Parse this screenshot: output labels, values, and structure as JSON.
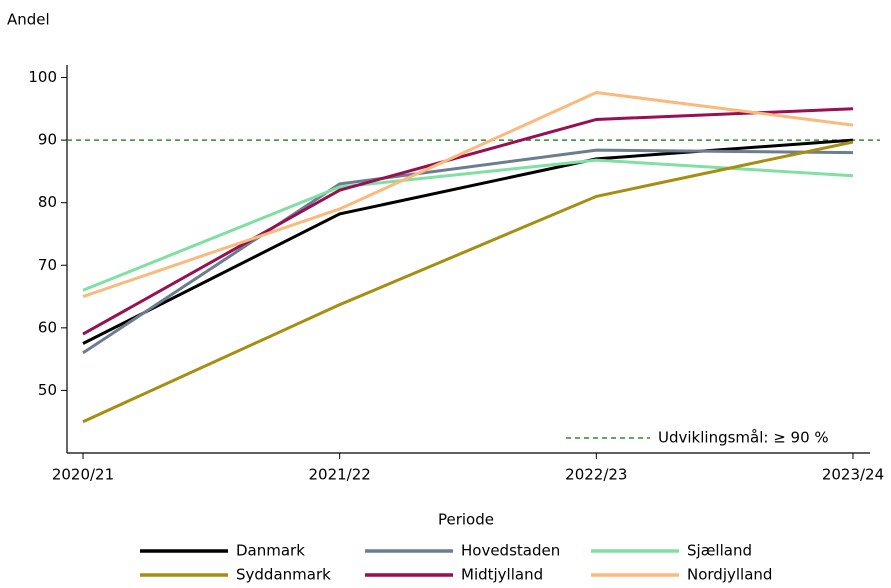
{
  "chart_data": {
    "type": "line",
    "y_label": "Andel",
    "x_label": "Periode",
    "categories": [
      "2020/21",
      "2021/22",
      "2022/23",
      "2023/24"
    ],
    "series": [
      {
        "name": "Danmark",
        "color": "#000000",
        "values": [
          57.5,
          78.2,
          87,
          90
        ]
      },
      {
        "name": "Hovedstaden",
        "color": "#6b7d8f",
        "values": [
          56,
          83,
          88.4,
          88
        ]
      },
      {
        "name": "Sjælland",
        "color": "#7fe0a3",
        "values": [
          66,
          82.5,
          86.8,
          84.3
        ]
      },
      {
        "name": "Syddanmark",
        "color": "#a68e10",
        "values": [
          45,
          63.7,
          81,
          89.7
        ]
      },
      {
        "name": "Midtjylland",
        "color": "#990f52",
        "values": [
          59,
          82,
          93.3,
          95
        ]
      },
      {
        "name": "Nordjylland",
        "color": "#fbb97c",
        "values": [
          65,
          79,
          97.6,
          92.4
        ]
      }
    ],
    "reference_line": {
      "value": 90,
      "label": "Udviklingsmål: ≥ 90 %",
      "color": "#2e8b2e"
    },
    "ylim": [
      40,
      102
    ],
    "yticks": [
      50,
      60,
      70,
      80,
      90,
      100
    ]
  }
}
